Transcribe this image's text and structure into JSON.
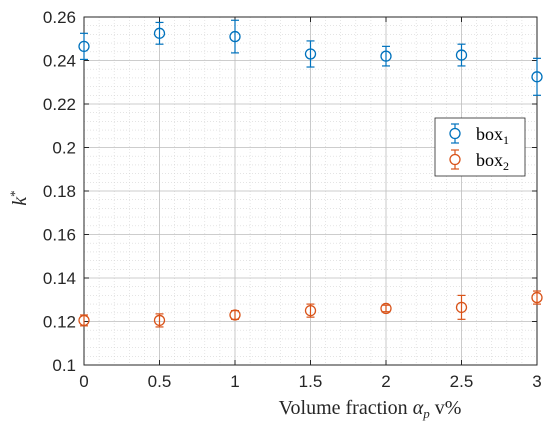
{
  "chart_data": {
    "type": "scatter",
    "x": [
      0,
      0.5,
      1,
      1.5,
      2,
      2.5,
      3
    ],
    "xlim": [
      0,
      3
    ],
    "ylim": [
      0.1,
      0.26
    ],
    "xticks": [
      "0",
      "0.5",
      "1",
      "1.5",
      "2",
      "2.5",
      "3"
    ],
    "yticks": [
      "0.1",
      "0.12",
      "0.14",
      "0.16",
      "0.18",
      "0.2",
      "0.22",
      "0.24",
      "0.26"
    ],
    "xlabel": {
      "prefix": "Volume fraction ",
      "symbol": "α",
      "sub": "p",
      "suffix": " v%"
    },
    "ylabel": {
      "symbol": "k",
      "sup": "*"
    },
    "grid": "major and minor",
    "legend_position": "right",
    "series": [
      {
        "name": "box",
        "name_sub": "1",
        "color": "#0072BD",
        "marker": "open-circle",
        "values": [
          0.2465,
          0.2525,
          0.251,
          0.243,
          0.242,
          0.2425,
          0.2325
        ],
        "errors": [
          0.006,
          0.005,
          0.0075,
          0.006,
          0.0045,
          0.005,
          0.0085
        ]
      },
      {
        "name": "box",
        "name_sub": "2",
        "color": "#D95319",
        "marker": "open-circle",
        "values": [
          0.1205,
          0.1205,
          0.123,
          0.125,
          0.126,
          0.1265,
          0.131
        ],
        "errors": [
          0.0025,
          0.003,
          0.002,
          0.003,
          0.0015,
          0.0055,
          0.003
        ]
      }
    ]
  }
}
